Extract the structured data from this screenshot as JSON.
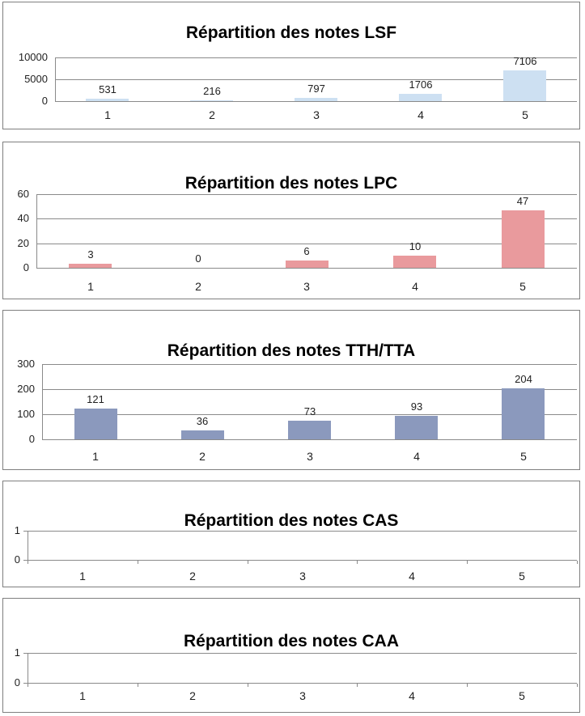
{
  "page": {
    "background_color": "#ffffff",
    "panel_border_color": "#7f7f7f",
    "grid_color": "#8a8a8a",
    "label_text_color": "#1f1f1f",
    "title_text_color": "#000000"
  },
  "chart_data": [
    {
      "type": "bar",
      "title": "Répartition des notes LSF",
      "categories": [
        "1",
        "2",
        "3",
        "4",
        "5"
      ],
      "values": [
        531,
        216,
        797,
        1706,
        7106
      ],
      "data_labels": [
        "531",
        "216",
        "797",
        "1706",
        "7106"
      ],
      "ylim": [
        0,
        10000
      ],
      "yticks": [
        0,
        5000,
        10000
      ],
      "ytick_labels": [
        "0",
        "5000",
        "10000"
      ],
      "bar_color": "#cde0f2",
      "grid": true,
      "legend": false,
      "data_labels_visible": true
    },
    {
      "type": "bar",
      "title": "Répartition des notes LPC",
      "categories": [
        "1",
        "2",
        "3",
        "4",
        "5"
      ],
      "values": [
        3,
        0,
        6,
        10,
        47
      ],
      "data_labels": [
        "3",
        "0",
        "6",
        "10",
        "47"
      ],
      "ylim": [
        0,
        60
      ],
      "yticks": [
        0,
        20,
        40,
        60
      ],
      "ytick_labels": [
        "0",
        "20",
        "40",
        "60"
      ],
      "bar_color": "#e99a9d",
      "grid": true,
      "legend": false,
      "data_labels_visible": true
    },
    {
      "type": "bar",
      "title": "Répartition des notes TTH/TTA",
      "categories": [
        "1",
        "2",
        "3",
        "4",
        "5"
      ],
      "values": [
        121,
        36,
        73,
        93,
        204
      ],
      "data_labels": [
        "121",
        "36",
        "73",
        "93",
        "204"
      ],
      "ylim": [
        0,
        300
      ],
      "yticks": [
        0,
        100,
        200,
        300
      ],
      "ytick_labels": [
        "0",
        "100",
        "200",
        "300"
      ],
      "bar_color": "#8b99bd",
      "grid": true,
      "legend": false,
      "data_labels_visible": true
    },
    {
      "type": "bar",
      "title": "Répartition des notes CAS",
      "categories": [
        "1",
        "2",
        "3",
        "4",
        "5"
      ],
      "values": [],
      "data_labels": [],
      "ylim": [
        0,
        1
      ],
      "yticks": [
        0,
        1
      ],
      "ytick_labels": [
        "0",
        "1"
      ],
      "bar_color": null,
      "grid": true,
      "legend": false,
      "data_labels_visible": false
    },
    {
      "type": "bar",
      "title": "Répartition des notes CAA",
      "categories": [
        "1",
        "2",
        "3",
        "4",
        "5"
      ],
      "values": [],
      "data_labels": [],
      "ylim": [
        0,
        1
      ],
      "yticks": [
        0,
        1
      ],
      "ytick_labels": [
        "0",
        "1"
      ],
      "bar_color": null,
      "grid": true,
      "legend": false,
      "data_labels_visible": false
    }
  ]
}
